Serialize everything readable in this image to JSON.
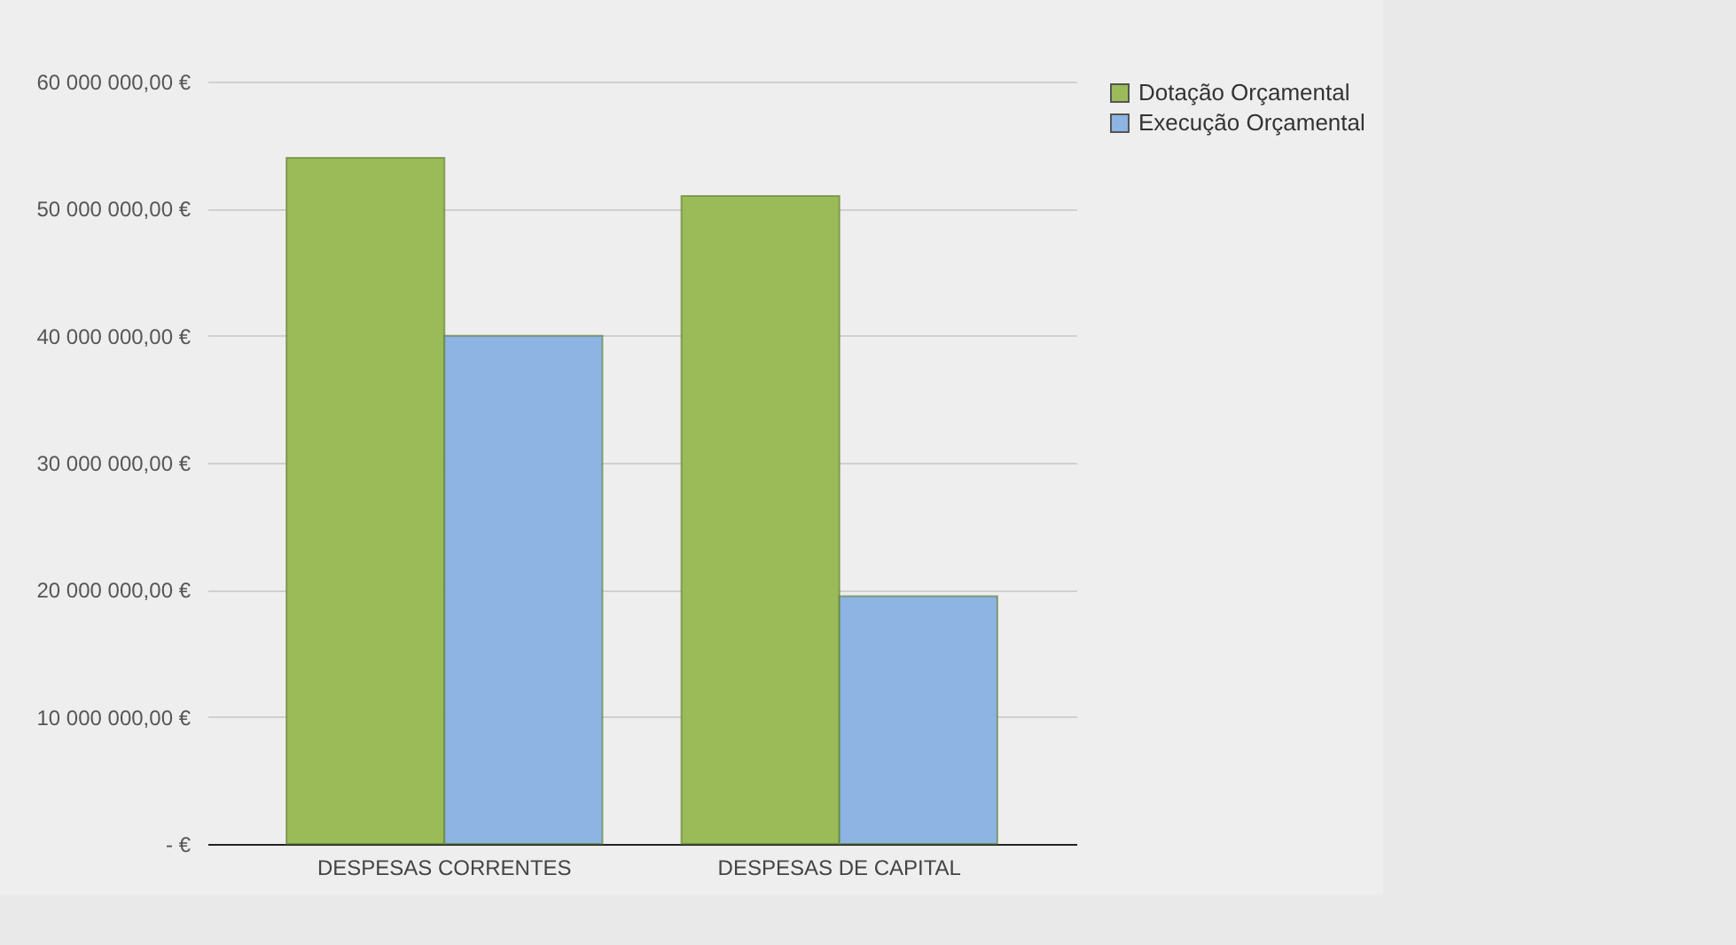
{
  "chart_data": {
    "type": "bar",
    "categories": [
      "DESPESAS CORRENTES",
      "DESPESAS DE CAPITAL"
    ],
    "series": [
      {
        "name": "Dotação Orçamental",
        "color": "#9bbb59",
        "values": [
          54000000,
          51000000
        ]
      },
      {
        "name": "Execução Orçamental",
        "color": "#8db4e2",
        "values": [
          40000000,
          19500000
        ]
      }
    ],
    "ylim": [
      0,
      60000000
    ],
    "yticks": [
      {
        "value": 0,
        "label": "-  €"
      },
      {
        "value": 10000000,
        "label": "10 000 000,00 €"
      },
      {
        "value": 20000000,
        "label": "20 000 000,00 €"
      },
      {
        "value": 30000000,
        "label": "30 000 000,00 €"
      },
      {
        "value": 40000000,
        "label": "40 000 000,00 €"
      },
      {
        "value": 50000000,
        "label": "50 000 000,00 €"
      },
      {
        "value": 60000000,
        "label": "60 000 000,00 €"
      }
    ],
    "grid": true,
    "legend": "right"
  }
}
